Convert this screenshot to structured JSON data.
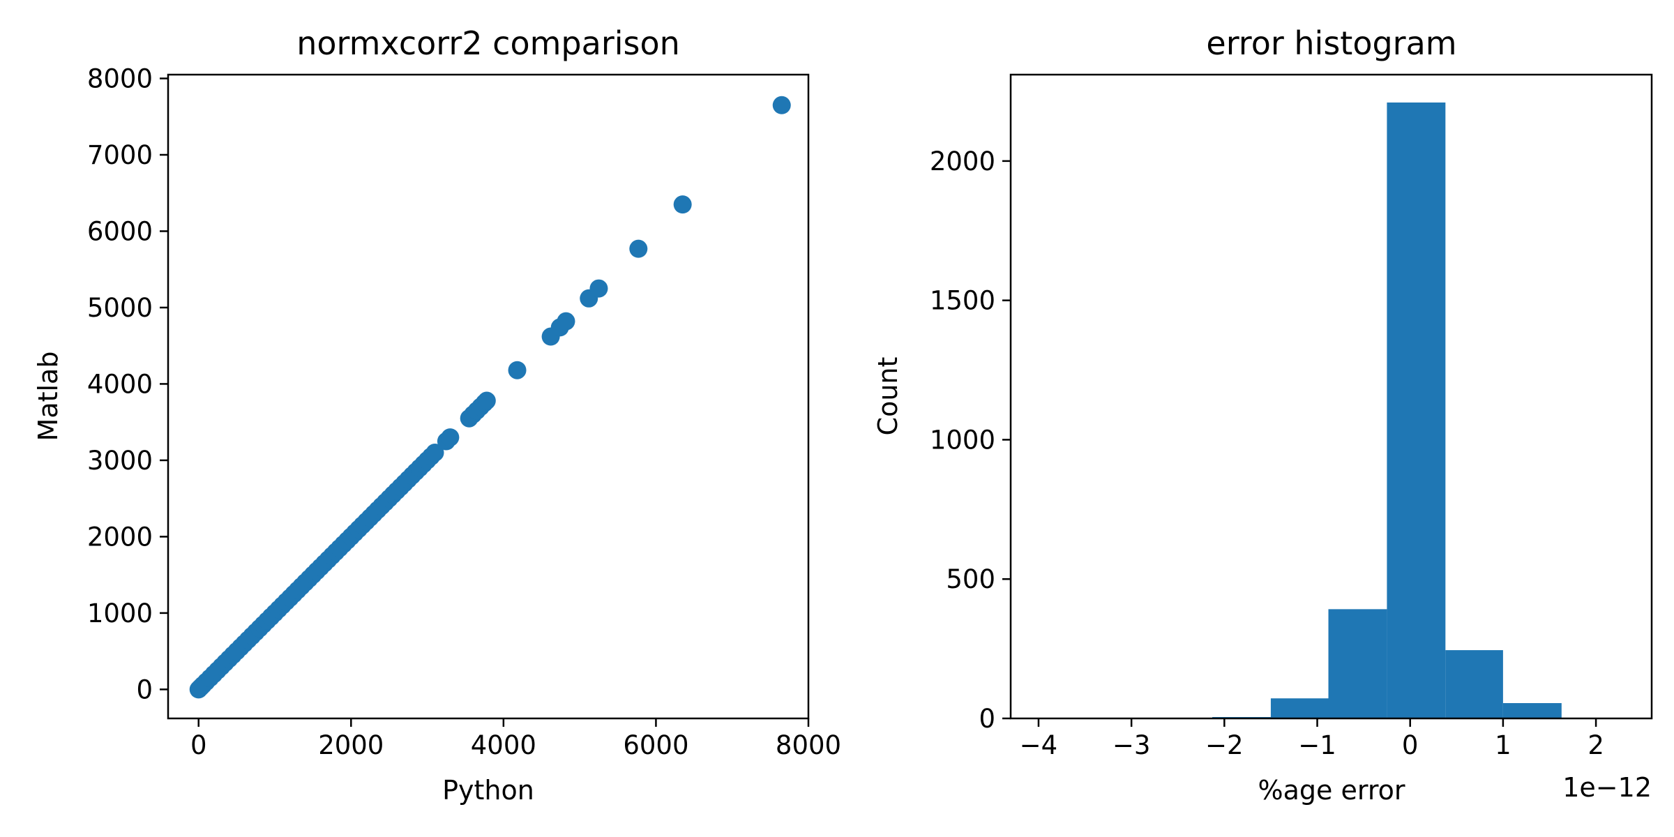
{
  "chart_data": [
    {
      "type": "scatter",
      "title": "normxcorr2 comparison",
      "xlabel": "Python",
      "ylabel": "Matlab",
      "xlim": [
        -400,
        8000
      ],
      "ylim": [
        -380,
        8050
      ],
      "xticks": [
        0,
        2000,
        4000,
        6000,
        8000
      ],
      "xtick_labels": [
        "0",
        "2000",
        "4000",
        "6000",
        "8000"
      ],
      "yticks": [
        0,
        1000,
        2000,
        3000,
        4000,
        5000,
        6000,
        7000,
        8000
      ],
      "ytick_labels": [
        "0",
        "1000",
        "2000",
        "3000",
        "4000",
        "5000",
        "6000",
        "7000",
        "8000"
      ],
      "grid": false,
      "color": "#1f77b4",
      "points_x": [
        0,
        20,
        40,
        60,
        100,
        150,
        200,
        250,
        300,
        350,
        400,
        450,
        500,
        550,
        600,
        650,
        700,
        750,
        800,
        850,
        900,
        950,
        1000,
        1050,
        1100,
        1150,
        1200,
        1250,
        1300,
        1350,
        1400,
        1450,
        1500,
        1550,
        1600,
        1650,
        1700,
        1750,
        1800,
        1850,
        1900,
        1950,
        2000,
        2050,
        2100,
        2150,
        2200,
        2250,
        2300,
        2350,
        2400,
        2450,
        2500,
        2550,
        2600,
        2650,
        2700,
        2750,
        2800,
        2850,
        2900,
        2950,
        3000,
        3050,
        3100,
        3250,
        3300,
        3550,
        3600,
        3650,
        3700,
        3750,
        3780,
        4180,
        4620,
        4740,
        4820,
        5120,
        5250,
        5770,
        6350,
        7650
      ],
      "points_y": [
        0,
        20,
        40,
        60,
        100,
        150,
        200,
        250,
        300,
        350,
        400,
        450,
        500,
        550,
        600,
        650,
        700,
        750,
        800,
        850,
        900,
        950,
        1000,
        1050,
        1100,
        1150,
        1200,
        1250,
        1300,
        1350,
        1400,
        1450,
        1500,
        1550,
        1600,
        1650,
        1700,
        1750,
        1800,
        1850,
        1900,
        1950,
        2000,
        2050,
        2100,
        2150,
        2200,
        2250,
        2300,
        2350,
        2400,
        2450,
        2500,
        2550,
        2600,
        2650,
        2700,
        2750,
        2800,
        2850,
        2900,
        2950,
        3000,
        3050,
        3100,
        3250,
        3300,
        3550,
        3600,
        3650,
        3700,
        3750,
        3780,
        4180,
        4620,
        4740,
        4820,
        5120,
        5250,
        5770,
        6350,
        7650
      ]
    },
    {
      "type": "bar",
      "title": "error histogram",
      "xlabel": "%age error",
      "ylabel": "Count",
      "x_scale_label": "1e−12",
      "xlim": [
        -4.3,
        2.6
      ],
      "ylim": [
        0,
        2310
      ],
      "xticks": [
        -4,
        -3,
        -2,
        -1,
        0,
        1,
        2
      ],
      "xtick_labels": [
        "−4",
        "−3",
        "−2",
        "−1",
        "0",
        "1",
        "2"
      ],
      "yticks": [
        0,
        500,
        1000,
        1500,
        2000
      ],
      "ytick_labels": [
        "0",
        "500",
        "1000",
        "1500",
        "2000"
      ],
      "grid": false,
      "color": "#1f77b4",
      "bins": [
        {
          "x0": -4.0,
          "x1": -3.38,
          "count": 0
        },
        {
          "x0": -3.38,
          "x1": -2.75,
          "count": 0
        },
        {
          "x0": -2.75,
          "x1": -2.13,
          "count": 0
        },
        {
          "x0": -2.13,
          "x1": -1.5,
          "count": 5
        },
        {
          "x0": -1.5,
          "x1": -0.88,
          "count": 72
        },
        {
          "x0": -0.88,
          "x1": -0.25,
          "count": 392
        },
        {
          "x0": -0.25,
          "x1": 0.38,
          "count": 2210
        },
        {
          "x0": 0.38,
          "x1": 1.0,
          "count": 245
        },
        {
          "x0": 1.0,
          "x1": 1.63,
          "count": 55
        },
        {
          "x0": 1.63,
          "x1": 2.25,
          "count": 0
        }
      ]
    }
  ]
}
